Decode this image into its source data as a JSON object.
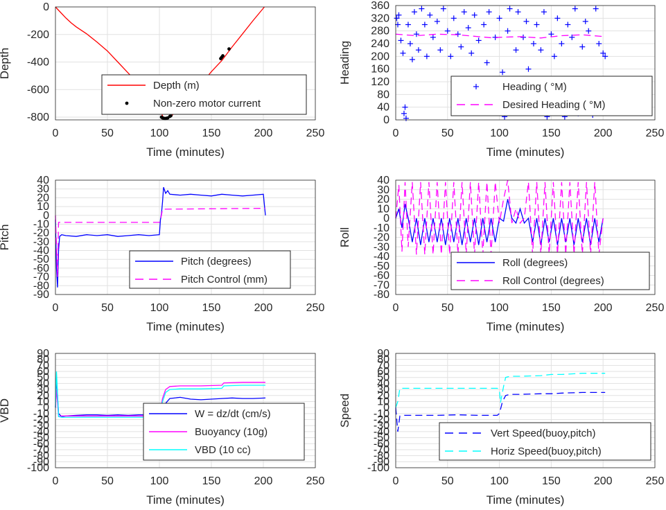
{
  "chart_data": [
    {
      "type": "line",
      "id": "depth",
      "xlabel": "Time (minutes)",
      "ylabel": "Depth",
      "xlim": [
        0,
        250
      ],
      "ylim": [
        -820,
        0
      ],
      "xticks": [
        0,
        50,
        100,
        150,
        200,
        250
      ],
      "yticks": [
        0,
        -200,
        -400,
        -600,
        -800
      ],
      "grid": true,
      "legend": "bottom-right",
      "series": [
        {
          "name": "Depth (m)",
          "style": "line",
          "color": "#ff0000",
          "x": [
            0,
            5,
            10,
            15,
            20,
            30,
            40,
            50,
            60,
            70,
            80,
            90,
            100,
            104,
            108,
            112,
            120,
            130,
            140,
            150,
            160,
            170,
            180,
            190,
            201
          ],
          "y": [
            0,
            -40,
            -80,
            -115,
            -145,
            -195,
            -255,
            -320,
            -400,
            -480,
            -560,
            -640,
            -730,
            -810,
            -810,
            -790,
            -720,
            -640,
            -560,
            -470,
            -390,
            -290,
            -195,
            -100,
            0
          ]
        },
        {
          "name": "Non-zero motor current",
          "style": "dots",
          "color": "#000000",
          "x": [
            102,
            103,
            104,
            105,
            106,
            107,
            108,
            110,
            111,
            159,
            160,
            161,
            167
          ],
          "y": [
            -800,
            -805,
            -808,
            -810,
            -810,
            -808,
            -806,
            -795,
            -790,
            -375,
            -365,
            -355,
            -305
          ]
        }
      ]
    },
    {
      "type": "scatter",
      "id": "heading",
      "xlabel": "Time (minutes)",
      "ylabel": "Heading",
      "xlim": [
        0,
        250
      ],
      "ylim": [
        0,
        360
      ],
      "xticks": [
        0,
        50,
        100,
        150,
        200,
        250
      ],
      "yticks": [
        0,
        40,
        80,
        120,
        160,
        200,
        240,
        280,
        320,
        360
      ],
      "grid": true,
      "legend": "bottom-right",
      "series": [
        {
          "name": "Heading ( °M)",
          "style": "plus",
          "color": "#0000ff",
          "x": [
            1,
            2,
            3,
            5,
            7,
            8,
            9,
            10,
            12,
            14,
            16,
            18,
            20,
            22,
            25,
            28,
            30,
            33,
            36,
            40,
            43,
            46,
            50,
            53,
            56,
            60,
            63,
            66,
            70,
            73,
            76,
            78,
            80,
            82,
            85,
            88,
            90,
            93,
            96,
            98,
            100,
            103,
            105,
            108,
            110,
            113,
            116,
            118,
            120,
            123,
            126,
            128,
            130,
            133,
            136,
            140,
            143,
            146,
            150,
            153,
            156,
            160,
            163,
            166,
            170,
            173,
            176,
            180,
            183,
            186,
            190,
            193,
            196,
            200,
            202
          ],
          "y": [
            320,
            300,
            330,
            250,
            210,
            20,
            40,
            5,
            300,
            240,
            190,
            340,
            270,
            220,
            350,
            300,
            200,
            330,
            260,
            310,
            220,
            350,
            280,
            200,
            320,
            270,
            230,
            340,
            290,
            210,
            330,
            120,
            250,
            60,
            300,
            180,
            340,
            100,
            260,
            40,
            320,
            150,
            10,
            280,
            350,
            90,
            220,
            340,
            30,
            260,
            310,
            160,
            80,
            240,
            300,
            220,
            340,
            10,
            270,
            200,
            320,
            240,
            10,
            300,
            260,
            350,
            20,
            230,
            310,
            280,
            15,
            350,
            240,
            210,
            200
          ]
        },
        {
          "name": "Desired Heading (  °M)",
          "style": "dash",
          "color": "#ff00ff",
          "x": [
            0,
            20,
            40,
            60,
            80,
            95,
            100,
            120,
            140,
            160,
            180,
            202
          ],
          "y": [
            270,
            265,
            270,
            268,
            262,
            258,
            260,
            262,
            258,
            265,
            268,
            262
          ]
        }
      ]
    },
    {
      "type": "line",
      "id": "pitch",
      "xlabel": "Time (minutes)",
      "ylabel": "Pitch",
      "xlim": [
        0,
        250
      ],
      "ylim": [
        -90,
        40
      ],
      "xticks": [
        0,
        50,
        100,
        150,
        200,
        250
      ],
      "yticks": [
        40,
        30,
        20,
        10,
        0,
        -10,
        -20,
        -30,
        -40,
        -50,
        -60,
        -70,
        -80,
        -90
      ],
      "grid": true,
      "legend": "bottom-right",
      "series": [
        {
          "name": "Pitch (degrees)",
          "style": "line",
          "color": "#0000ff",
          "x": [
            0,
            1,
            2,
            3,
            4,
            6,
            10,
            20,
            30,
            40,
            50,
            60,
            70,
            80,
            90,
            100,
            101,
            102,
            103,
            104,
            106,
            108,
            110,
            120,
            130,
            140,
            150,
            160,
            170,
            180,
            190,
            200,
            202
          ],
          "y": [
            -5,
            -60,
            -82,
            -40,
            -24,
            -22,
            -23,
            -24,
            -22,
            -23,
            -22,
            -24,
            -23,
            -22,
            -23,
            -22,
            -5,
            2,
            15,
            32,
            25,
            28,
            24,
            23,
            24,
            23,
            22,
            24,
            23,
            22,
            23,
            24,
            0
          ]
        },
        {
          "name": "Pitch Control (mm)",
          "style": "dash",
          "color": "#ff00ff",
          "x": [
            0,
            2,
            3,
            100,
            101,
            103,
            202
          ],
          "y": [
            0,
            -70,
            -8,
            -8,
            -6,
            7,
            8
          ]
        }
      ]
    },
    {
      "type": "line",
      "id": "roll",
      "xlabel": "Time (minutes)",
      "ylabel": "Roll",
      "xlim": [
        0,
        250
      ],
      "ylim": [
        -80,
        40
      ],
      "xticks": [
        0,
        50,
        100,
        150,
        200,
        250
      ],
      "yticks": [
        40,
        30,
        20,
        10,
        0,
        -10,
        -20,
        -30,
        -40,
        -50,
        -60,
        -70,
        -80
      ],
      "grid": true,
      "legend": "bottom-right",
      "series": [
        {
          "name": "Roll (degrees)",
          "style": "line",
          "color": "#0000ff",
          "x": [
            0,
            3,
            6,
            9,
            12,
            16,
            20,
            24,
            28,
            32,
            36,
            40,
            44,
            48,
            52,
            56,
            60,
            64,
            68,
            72,
            76,
            80,
            84,
            88,
            92,
            96,
            100,
            104,
            108,
            112,
            116,
            120,
            124,
            128,
            132,
            136,
            140,
            144,
            148,
            152,
            156,
            160,
            164,
            168,
            172,
            176,
            180,
            184,
            188,
            192,
            196,
            200
          ],
          "y": [
            0,
            10,
            -10,
            15,
            0,
            -25,
            0,
            -28,
            0,
            -25,
            0,
            -25,
            0,
            -28,
            0,
            -25,
            0,
            -28,
            0,
            -25,
            0,
            -28,
            0,
            -25,
            0,
            -25,
            0,
            -3,
            20,
            0,
            -5,
            10,
            -5,
            0,
            -25,
            0,
            -28,
            0,
            -25,
            0,
            -28,
            0,
            -25,
            0,
            -28,
            0,
            -25,
            0,
            -28,
            0,
            -25,
            0
          ]
        },
        {
          "name": "Roll Control (degrees)",
          "style": "dash",
          "color": "#ff00ff",
          "x": [
            0,
            3,
            6,
            9,
            12,
            16,
            20,
            24,
            28,
            32,
            36,
            40,
            44,
            48,
            52,
            56,
            60,
            64,
            68,
            72,
            76,
            80,
            84,
            88,
            92,
            96,
            100,
            104,
            108,
            112,
            116,
            120,
            124,
            128,
            132,
            136,
            140,
            144,
            148,
            152,
            156,
            160,
            164,
            168,
            172,
            176,
            180,
            184,
            188,
            192,
            196,
            200
          ],
          "y": [
            0,
            35,
            -35,
            38,
            -30,
            38,
            -38,
            38,
            -38,
            38,
            -38,
            38,
            -38,
            38,
            -38,
            38,
            -38,
            38,
            -38,
            38,
            -38,
            38,
            -38,
            38,
            -38,
            38,
            -5,
            20,
            40,
            -5,
            10,
            -5,
            0,
            38,
            -38,
            38,
            -38,
            38,
            -38,
            38,
            -38,
            38,
            -38,
            38,
            -38,
            38,
            -38,
            38,
            -38,
            38,
            -38,
            0
          ]
        }
      ]
    },
    {
      "type": "line",
      "id": "vbd",
      "xlabel": "Time (minutes)",
      "ylabel": "VBD",
      "xlim": [
        0,
        250
      ],
      "ylim": [
        -100,
        90
      ],
      "xticks": [
        0,
        50,
        100,
        150,
        200,
        250
      ],
      "yticks": [
        90,
        80,
        70,
        60,
        50,
        40,
        30,
        20,
        10,
        0,
        -10,
        -20,
        -30,
        -40,
        -50,
        -60,
        -70,
        -80,
        -90,
        -100
      ],
      "grid": true,
      "legend": "bottom-right",
      "series": [
        {
          "name": "W = dz/dt (cm/s)",
          "style": "line",
          "color": "#0000ff",
          "x": [
            0,
            1,
            3,
            6,
            10,
            20,
            30,
            40,
            50,
            60,
            70,
            80,
            90,
            100,
            102,
            105,
            110,
            120,
            130,
            140,
            150,
            160,
            170,
            180,
            190,
            202
          ],
          "y": [
            0,
            50,
            -10,
            -15,
            -14,
            -13,
            -12,
            -12,
            -13,
            -12,
            -13,
            -12,
            -12,
            -12,
            -5,
            5,
            15,
            17,
            14,
            13,
            14,
            15,
            16,
            15,
            15,
            16
          ]
        },
        {
          "name": "Buoyancy (10g)",
          "style": "line",
          "color": "#ff00ff",
          "x": [
            0,
            1,
            3,
            6,
            20,
            40,
            60,
            80,
            100,
            103,
            106,
            110,
            120,
            140,
            160,
            162,
            180,
            202
          ],
          "y": [
            0,
            30,
            -15,
            -14,
            -14,
            -14,
            -14,
            -14,
            -14,
            15,
            30,
            35,
            36,
            36,
            37,
            41,
            42,
            42
          ]
        },
        {
          "name": "VBD (10 cc)",
          "style": "line",
          "color": "#00ffff",
          "x": [
            0,
            1,
            3,
            6,
            20,
            40,
            60,
            80,
            100,
            103,
            106,
            110,
            120,
            140,
            160,
            162,
            180,
            202
          ],
          "y": [
            0,
            60,
            -15,
            -16,
            -16,
            -16,
            -16,
            -16,
            -16,
            10,
            25,
            30,
            31,
            31,
            32,
            36,
            37,
            37
          ]
        }
      ]
    },
    {
      "type": "line",
      "id": "speed",
      "xlabel": "Time (minutes)",
      "ylabel": "Speed",
      "xlim": [
        0,
        250
      ],
      "ylim": [
        -100,
        90
      ],
      "xticks": [
        0,
        50,
        100,
        150,
        200,
        250
      ],
      "yticks": [
        90,
        80,
        70,
        60,
        50,
        40,
        30,
        20,
        10,
        0,
        -10,
        -20,
        -30,
        -40,
        -50,
        -60,
        -70,
        -80,
        -90,
        -100
      ],
      "grid": true,
      "legend": "bottom-right",
      "series": [
        {
          "name": "Vert Speed(buoy,pitch)",
          "style": "dash",
          "color": "#0000ff",
          "x": [
            0,
            2,
            4,
            8,
            20,
            40,
            60,
            80,
            90,
            98,
            100,
            103,
            106,
            110,
            120,
            140,
            150,
            160,
            180,
            202
          ],
          "y": [
            0,
            -40,
            -14,
            -13,
            -13,
            -13,
            -12,
            -13,
            -13,
            -13,
            -10,
            10,
            20,
            22,
            22,
            23,
            23,
            24,
            25,
            25
          ]
        },
        {
          "name": "Horiz Speed(buoy,pitch)",
          "style": "dash",
          "color": "#00ffff",
          "x": [
            0,
            2,
            4,
            8,
            20,
            40,
            60,
            80,
            98,
            100,
            101,
            104,
            106,
            110,
            120,
            140,
            150,
            160,
            180,
            202
          ],
          "y": [
            0,
            10,
            32,
            32,
            32,
            32,
            32,
            32,
            32,
            30,
            8,
            35,
            50,
            52,
            52,
            53,
            55,
            55,
            57,
            57
          ]
        }
      ]
    }
  ]
}
